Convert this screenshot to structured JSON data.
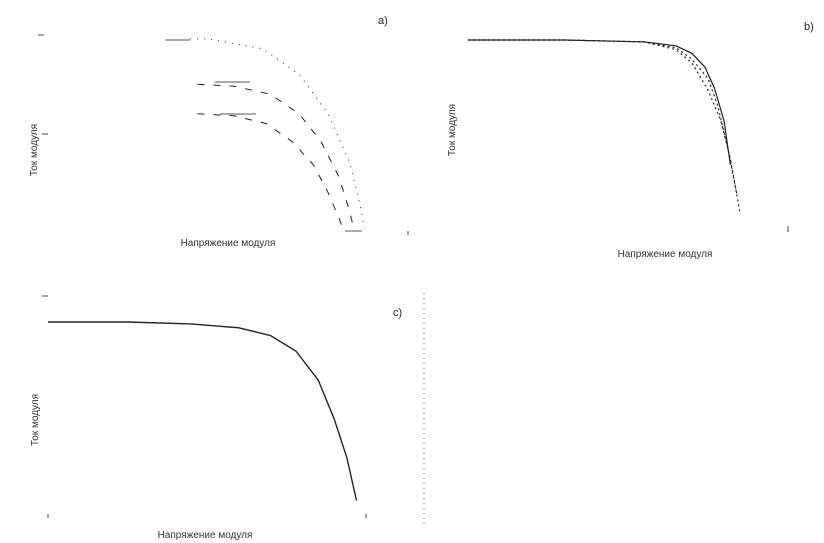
{
  "figure": {
    "panels": [
      {
        "id": "a",
        "label": "a)",
        "xlabel": "Напряжение модуля",
        "ylabel": "Ток модуля"
      },
      {
        "id": "b",
        "label": "b)",
        "xlabel": "Напряжение модуля",
        "ylabel": "Ток модуля"
      },
      {
        "id": "c",
        "label": "c)",
        "xlabel": "Напряжение модуля",
        "ylabel": "Ток модуля"
      }
    ]
  },
  "chart_data": [
    {
      "type": "line",
      "title": "a)",
      "xlabel": "Напряжение модуля",
      "ylabel": "Ток модуля",
      "xlim": [
        0,
        1
      ],
      "ylim": [
        0,
        1
      ],
      "series": [
        {
          "x": [
            0.4,
            0.45,
            0.6,
            0.7,
            0.78,
            0.84,
            0.87,
            0.88
          ],
          "y": [
            0.98,
            0.98,
            0.93,
            0.8,
            0.6,
            0.35,
            0.12,
            0.02
          ]
        },
        {
          "x": [
            0.42,
            0.52,
            0.62,
            0.7,
            0.76,
            0.81,
            0.84,
            0.85
          ],
          "y": [
            0.75,
            0.74,
            0.7,
            0.6,
            0.46,
            0.28,
            0.1,
            0.02
          ]
        },
        {
          "x": [
            0.42,
            0.52,
            0.61,
            0.68,
            0.74,
            0.78,
            0.81,
            0.82
          ],
          "y": [
            0.6,
            0.59,
            0.55,
            0.46,
            0.34,
            0.2,
            0.07,
            0.02
          ]
        }
      ]
    },
    {
      "type": "line",
      "title": "b)",
      "xlabel": "Напряжение модуля",
      "ylabel": "Ток модуля",
      "xlim": [
        0,
        1
      ],
      "ylim": [
        0,
        1
      ],
      "series": [
        {
          "x": [
            0.0,
            0.3,
            0.55,
            0.65,
            0.7,
            0.74,
            0.77,
            0.8,
            0.82
          ],
          "y": [
            1.0,
            1.0,
            0.99,
            0.97,
            0.93,
            0.86,
            0.75,
            0.58,
            0.35
          ]
        },
        {
          "x": [
            0.0,
            0.3,
            0.55,
            0.65,
            0.7,
            0.75,
            0.78,
            0.81,
            0.84
          ],
          "y": [
            1.0,
            1.0,
            0.99,
            0.96,
            0.9,
            0.8,
            0.66,
            0.45,
            0.2
          ]
        },
        {
          "x": [
            0.0,
            0.3,
            0.55,
            0.65,
            0.7,
            0.75,
            0.79,
            0.82,
            0.85
          ],
          "y": [
            1.0,
            1.0,
            0.99,
            0.95,
            0.88,
            0.74,
            0.58,
            0.38,
            0.1
          ]
        }
      ]
    },
    {
      "type": "line",
      "title": "c)",
      "xlabel": "Напряжение модуля",
      "ylabel": "Ток модуля",
      "xlim": [
        0,
        1
      ],
      "ylim": [
        0,
        1
      ],
      "series": [
        {
          "x": [
            0.0,
            0.25,
            0.45,
            0.6,
            0.7,
            0.78,
            0.85,
            0.9,
            0.94,
            0.97
          ],
          "y": [
            1.0,
            1.0,
            0.99,
            0.97,
            0.93,
            0.85,
            0.7,
            0.5,
            0.3,
            0.08
          ]
        }
      ]
    }
  ]
}
